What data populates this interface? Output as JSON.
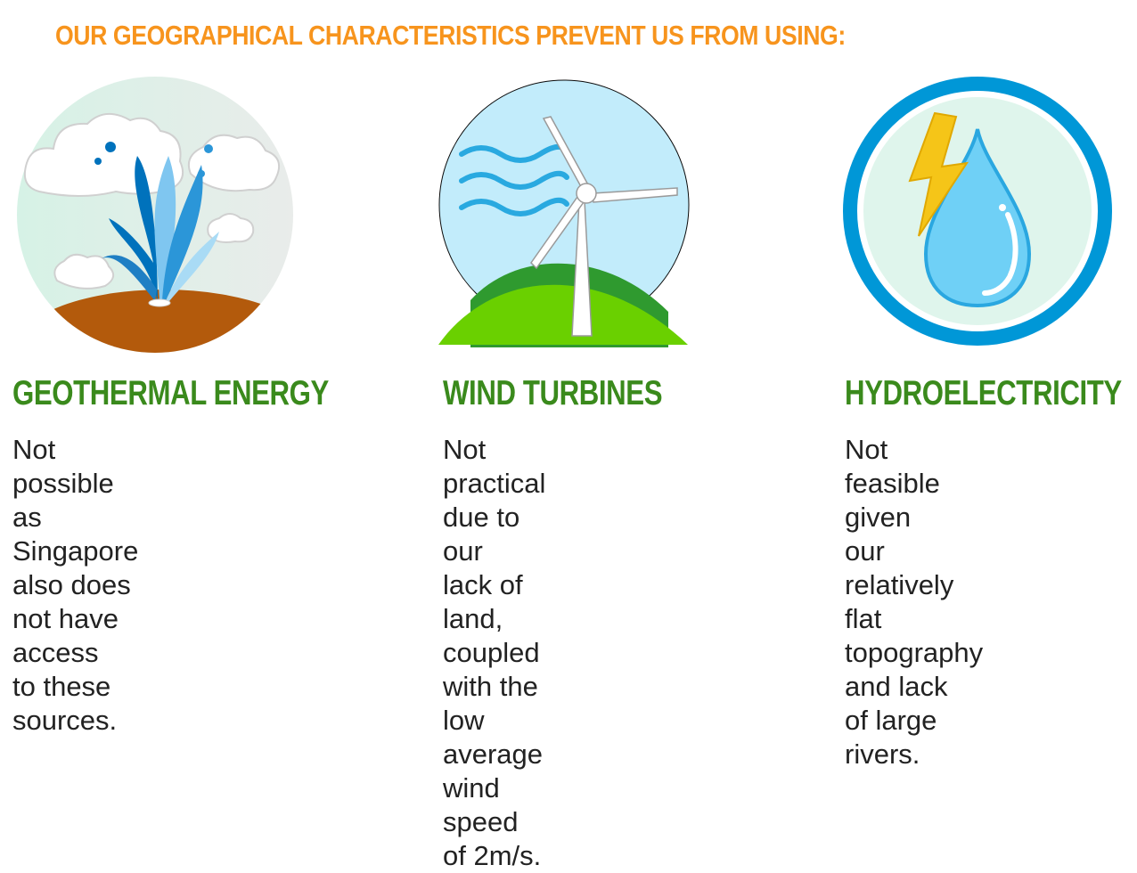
{
  "headline": "OUR GEOGRAPHICAL CHARACTERISTICS PREVENT US FROM USING:",
  "colors": {
    "headline": "#f7941d",
    "title": "#3a8a1c",
    "body": "#222222",
    "water_light": "#7fd3f7",
    "water_dark": "#0072bc",
    "ring": "#0097d7",
    "soil": "#b35a0c",
    "grass": "#6ad000",
    "bolt": "#f5c518"
  },
  "items": [
    {
      "icon": "geyser-icon",
      "title": "GEOTHERMAL ENERGY",
      "lines": [
        "Not possible as Singapore",
        "also does not have access",
        "to these sources."
      ]
    },
    {
      "icon": "wind-turbine-icon",
      "title": "WIND TURBINES",
      "lines": [
        "Not practical due to our",
        "lack of land, coupled",
        "with the low average",
        "wind speed of 2m/s."
      ]
    },
    {
      "icon": "water-drop-lightning-icon",
      "title": "HYDROELECTRICITY",
      "lines": [
        "Not feasible given",
        "our relatively flat",
        "topography and lack",
        "of large rivers."
      ]
    }
  ]
}
